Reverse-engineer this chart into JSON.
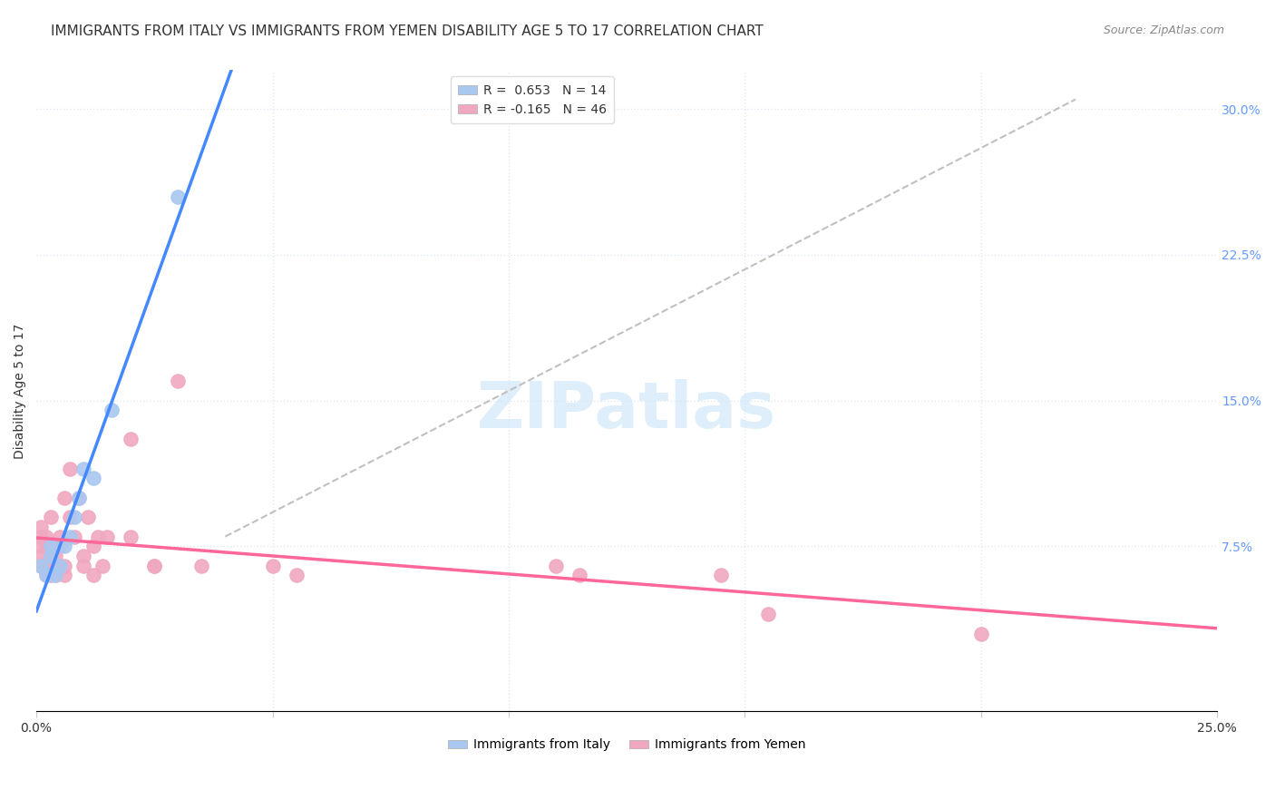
{
  "title": "IMMIGRANTS FROM ITALY VS IMMIGRANTS FROM YEMEN DISABILITY AGE 5 TO 17 CORRELATION CHART",
  "source": "Source: ZipAtlas.com",
  "xlabel_bottom_left": "0.0%",
  "xlabel_bottom_right": "25.0%",
  "ylabel": "Disability Age 5 to 17",
  "right_yticks": [
    "30.0%",
    "22.5%",
    "15.0%",
    "7.5%"
  ],
  "right_ytick_vals": [
    0.3,
    0.225,
    0.15,
    0.075
  ],
  "xmin": 0.0,
  "xmax": 0.25,
  "ymin": -0.01,
  "ymax": 0.32,
  "italy_R": 0.653,
  "italy_N": 14,
  "yemen_R": -0.165,
  "yemen_N": 46,
  "italy_color": "#a8c8f0",
  "yemen_color": "#f0a8c0",
  "italy_line_color": "#4488ff",
  "yemen_line_color": "#ff6699",
  "diagonal_color": "#c0c0c0",
  "italy_x": [
    0.001,
    0.002,
    0.003,
    0.003,
    0.004,
    0.005,
    0.006,
    0.007,
    0.008,
    0.009,
    0.01,
    0.012,
    0.016,
    0.03
  ],
  "italy_y": [
    0.065,
    0.06,
    0.07,
    0.075,
    0.06,
    0.065,
    0.075,
    0.08,
    0.09,
    0.1,
    0.115,
    0.11,
    0.145,
    0.255
  ],
  "yemen_x": [
    0.001,
    0.001,
    0.001,
    0.001,
    0.001,
    0.002,
    0.002,
    0.002,
    0.002,
    0.003,
    0.003,
    0.003,
    0.004,
    0.004,
    0.004,
    0.005,
    0.005,
    0.005,
    0.006,
    0.006,
    0.006,
    0.007,
    0.007,
    0.008,
    0.009,
    0.01,
    0.01,
    0.011,
    0.012,
    0.012,
    0.013,
    0.014,
    0.015,
    0.02,
    0.02,
    0.025,
    0.025,
    0.03,
    0.035,
    0.05,
    0.055,
    0.11,
    0.115,
    0.145,
    0.155,
    0.2
  ],
  "yemen_y": [
    0.065,
    0.07,
    0.075,
    0.08,
    0.085,
    0.06,
    0.065,
    0.075,
    0.08,
    0.06,
    0.07,
    0.09,
    0.06,
    0.065,
    0.07,
    0.065,
    0.075,
    0.08,
    0.06,
    0.065,
    0.1,
    0.09,
    0.115,
    0.08,
    0.1,
    0.065,
    0.07,
    0.09,
    0.06,
    0.075,
    0.08,
    0.065,
    0.08,
    0.08,
    0.13,
    0.065,
    0.065,
    0.16,
    0.065,
    0.065,
    0.06,
    0.065,
    0.06,
    0.06,
    0.04,
    0.03
  ],
  "background_color": "#ffffff",
  "grid_color": "#e0e8f0",
  "title_fontsize": 11,
  "axis_label_fontsize": 10,
  "tick_fontsize": 10,
  "legend_fontsize": 10,
  "source_fontsize": 9
}
